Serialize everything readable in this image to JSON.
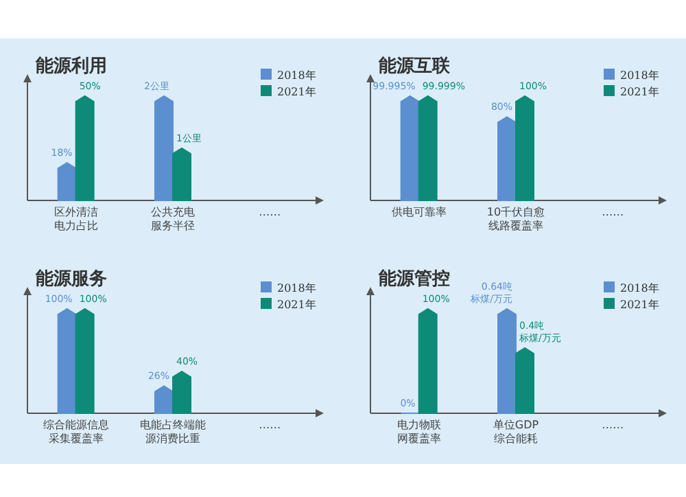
{
  "chart_data": [
    {
      "type": "bar",
      "title": "能源利用",
      "categories": [
        "区外清洁电力占比"
      ],
      "series": [
        {
          "color": "#5b8fd0",
          "values": [
            18
          ],
          "value_labels": [
            "18%"
          ]
        },
        {
          "color": "#0e8a78",
          "values": [
            50
          ],
          "value_labels": [
            "50%"
          ]
        }
      ]
    },
    {
      "type": "bar",
      "legend": "top right",
      "categories": [
        "公共充电服务半径",
        "……"
      ],
      "series": [
        {
          "name": "2018年",
          "color": "#5b8fd0",
          "values": [
            2,
            null
          ],
          "value_labels": [
            "2公里",
            null
          ]
        },
        {
          "name": "2021年",
          "color": "#0e8a78",
          "values": [
            1,
            null
          ],
          "value_labels": [
            "1公里",
            null
          ]
        }
      ]
    },
    {
      "type": "bar",
      "title": "能源互联",
      "legend": "top right",
      "categories": [
        "供电可靠率",
        "10千伏自愈线路覆盖率",
        "……"
      ],
      "series": [
        {
          "name": "2018年",
          "color": "#5b8fd0",
          "values": [
            99.995,
            80,
            null
          ],
          "value_labels": [
            "99.995%",
            "80%",
            null
          ]
        },
        {
          "name": "2021年",
          "color": "#0e8a78",
          "values": [
            99.999,
            100,
            null
          ],
          "value_labels": [
            "99.999%",
            "100%",
            null
          ]
        }
      ]
    },
    {
      "type": "bar",
      "title": "能源服务",
      "legend": "top right",
      "categories": [
        "综合能源信息采集覆盖率",
        "电能占终端能源消费比重",
        "……"
      ],
      "series": [
        {
          "name": "2018年",
          "color": "#5b8fd0",
          "values": [
            100,
            26,
            null
          ],
          "value_labels": [
            "100%",
            "26%",
            null
          ]
        },
        {
          "name": "2021年",
          "color": "#0e8a78",
          "values": [
            100,
            40,
            null
          ],
          "value_labels": [
            "100%",
            "40%",
            null
          ]
        }
      ]
    },
    {
      "type": "bar",
      "title": "能源管控",
      "categories": [
        "电力物联网覆盖率"
      ],
      "series": [
        {
          "color": "#5b8fd0",
          "values": [
            0
          ],
          "value_labels": [
            "0%"
          ]
        },
        {
          "color": "#0e8a78",
          "values": [
            100
          ],
          "value_labels": [
            "100%"
          ]
        }
      ]
    },
    {
      "type": "bar",
      "legend": "top right",
      "categories": [
        "单位GDP综合能耗",
        "……"
      ],
      "series": [
        {
          "name": "2018年",
          "color": "#5b8fd0",
          "values": [
            0.64,
            null
          ],
          "value_labels": [
            "0.64吨标煤/万元",
            null
          ]
        },
        {
          "name": "2021年",
          "color": "#0e8a78",
          "values": [
            0.4,
            null
          ],
          "value_labels": [
            "0.4吨标煤/万元",
            null
          ]
        }
      ]
    }
  ]
}
